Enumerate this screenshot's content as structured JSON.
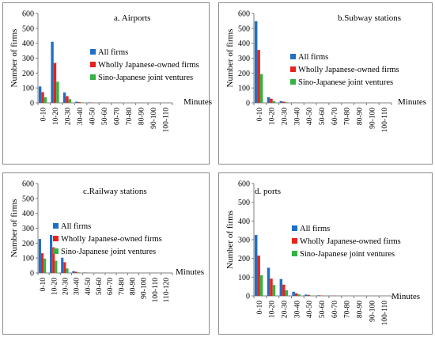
{
  "colors": {
    "all_firms": "#1f6fc5",
    "wholly_japanese": "#e8231e",
    "sino_japanese": "#33b344"
  },
  "chart_data": [
    {
      "type": "bar",
      "title": "a. Airports",
      "ylabel": "Number of firms",
      "xlabel": "Minutes",
      "ylim": [
        0,
        600
      ],
      "yticks": [
        "0",
        "100",
        "200",
        "300",
        "400",
        "500",
        "600"
      ],
      "categories": [
        "0-10",
        "10-20",
        "20-30",
        "30-40",
        "40-50",
        "50-60",
        "60-70",
        "70-80",
        "80-90",
        "90-100",
        "100-110"
      ],
      "legend_position": "right",
      "series": [
        {
          "name": "All firms",
          "color_key": "all_firms",
          "values": [
            110,
            410,
            70,
            8,
            3,
            2,
            0,
            0,
            0,
            0,
            0
          ]
        },
        {
          "name": "Wholly Japanese-owned firms",
          "color_key": "wholly_japanese",
          "values": [
            72,
            268,
            45,
            5,
            2,
            1,
            0,
            0,
            0,
            0,
            0
          ]
        },
        {
          "name": "Sino-Japanese joint ventures",
          "color_key": "sino_japanese",
          "values": [
            38,
            142,
            25,
            3,
            1,
            1,
            0,
            0,
            0,
            0,
            0
          ]
        }
      ]
    },
    {
      "type": "bar",
      "title": "b.Subway stations",
      "ylabel": "Number of firms",
      "xlabel": "Minutes",
      "ylim": [
        0,
        600
      ],
      "yticks": [
        "0",
        "100",
        "200",
        "300",
        "400",
        "500",
        "600"
      ],
      "categories": [
        "0-10",
        "10-20",
        "20-30",
        "30-40",
        "40-50",
        "50-60",
        "60-70",
        "70-80",
        "80-90",
        "90-100",
        "100-110"
      ],
      "legend_position": "right",
      "series": [
        {
          "name": "All firms",
          "color_key": "all_firms",
          "values": [
            548,
            38,
            12,
            2,
            0,
            0,
            0,
            0,
            0,
            0,
            0
          ]
        },
        {
          "name": "Wholly Japanese-owned firms",
          "color_key": "wholly_japanese",
          "values": [
            355,
            28,
            8,
            1,
            0,
            0,
            0,
            0,
            0,
            0,
            0
          ]
        },
        {
          "name": "Sino-Japanese joint ventures",
          "color_key": "sino_japanese",
          "values": [
            193,
            12,
            4,
            1,
            0,
            0,
            0,
            0,
            0,
            0,
            0
          ]
        }
      ]
    },
    {
      "type": "bar",
      "title": "c.Railway stations",
      "ylabel": "Number of firms",
      "xlabel": "Minutes",
      "ylim": [
        0,
        600
      ],
      "yticks": [
        "0",
        "100",
        "200",
        "300",
        "400",
        "500",
        "600"
      ],
      "categories": [
        "0-10",
        "10-20",
        "20-30",
        "30-40",
        "40-50",
        "50-60",
        "60-70",
        "70-80",
        "80-90",
        "90-100",
        "100-110",
        "110-120"
      ],
      "legend_position": "right",
      "series": [
        {
          "name": "All firms",
          "color_key": "all_firms",
          "values": [
            228,
            255,
            102,
            12,
            3,
            0,
            0,
            0,
            0,
            0,
            0,
            0
          ]
        },
        {
          "name": "Wholly Japanese-owned firms",
          "color_key": "wholly_japanese",
          "values": [
            132,
            172,
            72,
            8,
            2,
            0,
            0,
            0,
            0,
            0,
            0,
            0
          ]
        },
        {
          "name": "Sino-Japanese joint ventures",
          "color_key": "sino_japanese",
          "values": [
            96,
            82,
            30,
            4,
            1,
            0,
            0,
            0,
            0,
            0,
            0,
            0
          ]
        }
      ]
    },
    {
      "type": "bar",
      "title": "d. ports",
      "ylabel": "Number of firms",
      "xlabel": "Minutes",
      "ylim": [
        0,
        600
      ],
      "yticks": [
        "0",
        "100",
        "200",
        "300",
        "400",
        "500",
        "600"
      ],
      "categories": [
        "0-10",
        "10-20",
        "20-30",
        "30-40",
        "40-50",
        "50-60",
        "60-70",
        "70-80",
        "80-90",
        "90-100",
        "100-110"
      ],
      "legend_position": "right",
      "series": [
        {
          "name": "All firms",
          "color_key": "all_firms",
          "values": [
            325,
            150,
            90,
            22,
            7,
            3,
            1,
            0,
            0,
            0,
            0
          ]
        },
        {
          "name": "Wholly Japanese-owned firms",
          "color_key": "wholly_japanese",
          "values": [
            215,
            92,
            60,
            14,
            5,
            2,
            1,
            0,
            0,
            0,
            0
          ]
        },
        {
          "name": "Sino-Japanese joint ventures",
          "color_key": "sino_japanese",
          "values": [
            110,
            58,
            30,
            8,
            2,
            1,
            0,
            0,
            0,
            0,
            0
          ]
        }
      ]
    }
  ]
}
